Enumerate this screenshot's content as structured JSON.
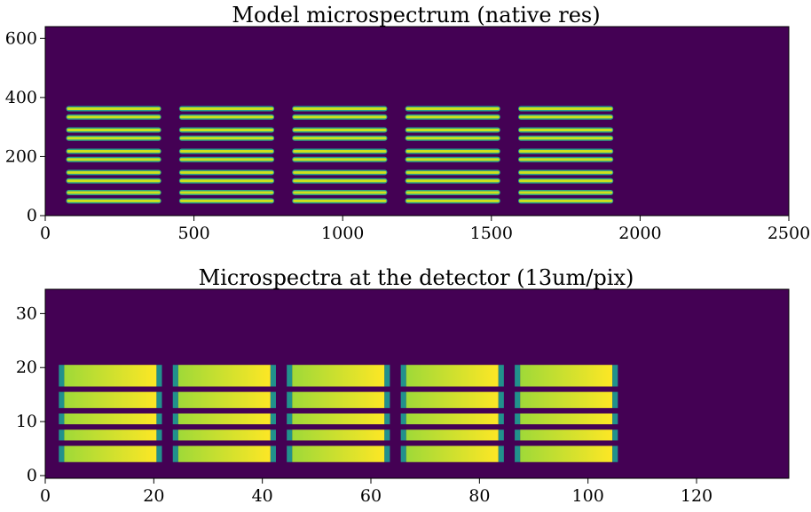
{
  "chart_data": [
    {
      "type": "heatmap",
      "title": "Model microspectrum (native res)",
      "xlabel": "",
      "ylabel": "",
      "xlim": [
        0,
        2500
      ],
      "ylim": [
        0,
        640
      ],
      "x_ticks": [
        0,
        500,
        1000,
        1500,
        2000,
        2500
      ],
      "y_ticks": [
        0,
        200,
        400,
        600
      ],
      "colormap": "viridis",
      "background_color": "#440154",
      "line_color": "#cde11d",
      "line_edge_color": "#2a9f8a",
      "column_x_ranges": [
        [
          70,
          390
        ],
        [
          450,
          770
        ],
        [
          830,
          1150
        ],
        [
          1210,
          1530
        ],
        [
          1590,
          1910
        ]
      ],
      "line_y_positions": [
        50,
        78,
        118,
        146,
        190,
        218,
        262,
        290,
        334,
        362
      ]
    },
    {
      "type": "heatmap",
      "title": "Microspectra at the detector (13um/pix)",
      "xlabel": "",
      "ylabel": "",
      "xlim": [
        0,
        137
      ],
      "ylim": [
        -0.5,
        34.5
      ],
      "x_ticks": [
        0,
        20,
        40,
        60,
        80,
        100,
        120
      ],
      "y_ticks": [
        0,
        10,
        20,
        30
      ],
      "colormap": "viridis",
      "background_color": "#440154",
      "gradient_start_color": "#9fd938",
      "gradient_end_color": "#fde725",
      "edge_color": "#21918c",
      "column_x_ranges": [
        [
          2.5,
          21.5
        ],
        [
          23.5,
          42.5
        ],
        [
          44.5,
          63.5
        ],
        [
          65.5,
          84.5
        ],
        [
          86.5,
          105.5
        ]
      ],
      "row_y_ranges": [
        [
          2.5,
          5.5
        ],
        [
          6.5,
          8.5
        ],
        [
          9.5,
          11.5
        ],
        [
          12.5,
          15.5
        ],
        [
          16.5,
          20.5
        ]
      ]
    }
  ]
}
